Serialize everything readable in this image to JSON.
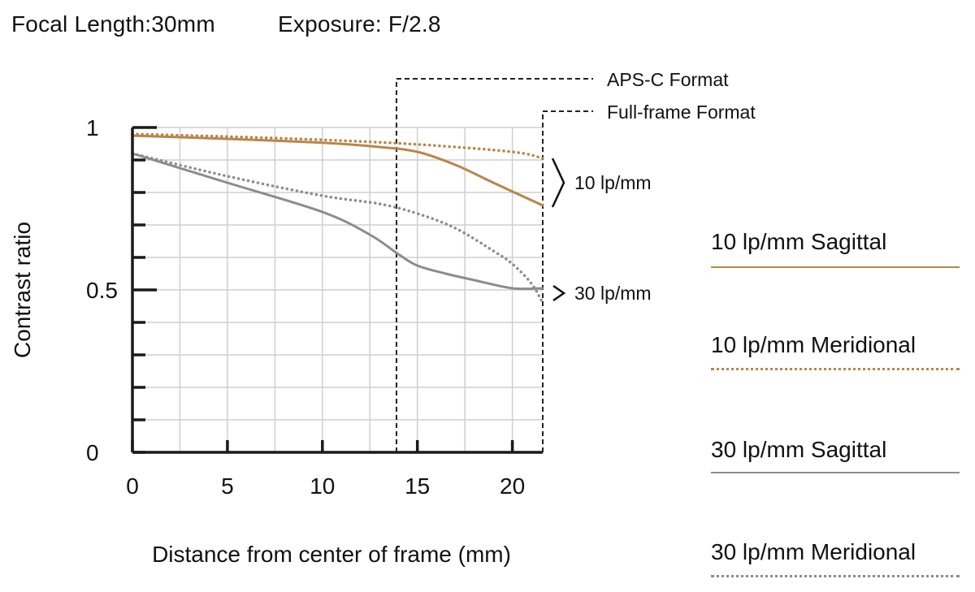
{
  "header": {
    "focal_length": "Focal Length:30mm",
    "exposure": "Exposure: F/2.8"
  },
  "formats": {
    "apsc": "APS-C Format",
    "fullframe": "Full-frame Format"
  },
  "group_labels": {
    "lp10": "10 lp/mm",
    "lp30": "30 lp/mm"
  },
  "colors": {
    "lp10": "#b8874a",
    "lp30": "#8c8c8c",
    "axis": "#1a1a1a",
    "grid": "#cfcfcf"
  },
  "legend": [
    {
      "label": "10 lp/mm Sagittal",
      "color": "#b8874a",
      "style": "solid"
    },
    {
      "label": "10 lp/mm Meridional",
      "color": "#b8874a",
      "style": "dotted"
    },
    {
      "label": "30 lp/mm Sagittal",
      "color": "#8c8c8c",
      "style": "solid"
    },
    {
      "label": "30 lp/mm Meridional",
      "color": "#8c8c8c",
      "style": "dotted"
    }
  ],
  "chart_data": {
    "type": "line",
    "xlabel": "Distance from center of frame (mm)",
    "ylabel": "Contrast ratio",
    "xlim": [
      0,
      21.6
    ],
    "ylim": [
      0,
      1
    ],
    "xticks": [
      "0",
      "5",
      "10",
      "15",
      "20"
    ],
    "xtick_values": [
      0,
      5,
      10,
      15,
      20
    ],
    "yticks": [
      "0",
      "0.5",
      "1"
    ],
    "ytick_values": [
      0,
      0.5,
      1
    ],
    "grid": true,
    "format_lines": [
      {
        "name": "APS-C Format",
        "x": 13.9
      },
      {
        "name": "Full-frame Format",
        "x": 21.6
      }
    ],
    "series": [
      {
        "name": "10 lp/mm Sagittal",
        "color": "#b8874a",
        "style": "solid",
        "x": [
          0,
          5,
          10,
          13,
          15,
          17,
          19,
          21.6
        ],
        "y": [
          0.975,
          0.965,
          0.953,
          0.94,
          0.925,
          0.885,
          0.83,
          0.76
        ]
      },
      {
        "name": "10 lp/mm Meridional",
        "color": "#b8874a",
        "style": "dotted",
        "x": [
          0,
          5,
          10,
          15,
          20,
          21.6
        ],
        "y": [
          0.98,
          0.972,
          0.962,
          0.948,
          0.925,
          0.905
        ]
      },
      {
        "name": "30 lp/mm Sagittal",
        "color": "#8c8c8c",
        "style": "solid",
        "x": [
          0,
          5,
          10,
          12.5,
          14,
          15,
          16.5,
          18,
          20,
          21.6
        ],
        "y": [
          0.92,
          0.83,
          0.74,
          0.67,
          0.61,
          0.575,
          0.55,
          0.53,
          0.505,
          0.505
        ]
      },
      {
        "name": "30 lp/mm Meridional",
        "color": "#8c8c8c",
        "style": "dotted",
        "x": [
          0,
          5,
          10,
          13,
          15,
          17,
          19,
          20,
          21,
          21.6
        ],
        "y": [
          0.92,
          0.85,
          0.79,
          0.765,
          0.735,
          0.69,
          0.62,
          0.58,
          0.52,
          0.46
        ]
      }
    ]
  }
}
